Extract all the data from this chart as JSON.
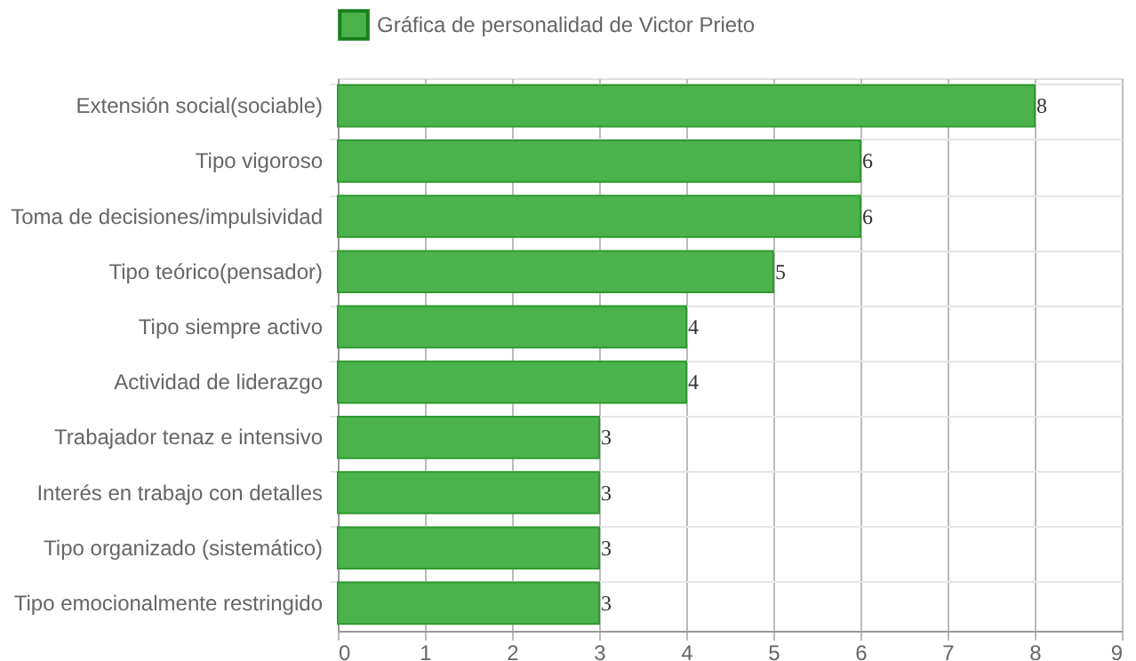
{
  "chart_data": {
    "type": "bar",
    "orientation": "horizontal",
    "categories": [
      "Extensión social(sociable)",
      "Tipo vigoroso",
      "Toma de decisiones/impulsividad",
      "Tipo teórico(pensador)",
      "Tipo siempre activo",
      "Actividad de liderazgo",
      "Trabajador tenaz e intensivo",
      "Interés en trabajo con detalles",
      "Tipo organizado (sistemático)",
      "Tipo emocionalmente restringido"
    ],
    "series": [
      {
        "name": "Gráfica de personalidad de Victor Prieto",
        "color": "#4cb34c",
        "values": [
          8,
          6,
          6,
          5,
          4,
          4,
          3,
          3,
          3,
          3
        ]
      }
    ],
    "xlim": [
      0,
      9
    ],
    "xticks": [
      0,
      1,
      2,
      3,
      4,
      5,
      6,
      7,
      8,
      9
    ],
    "grid": true,
    "legend": "top",
    "data_labels": true
  }
}
